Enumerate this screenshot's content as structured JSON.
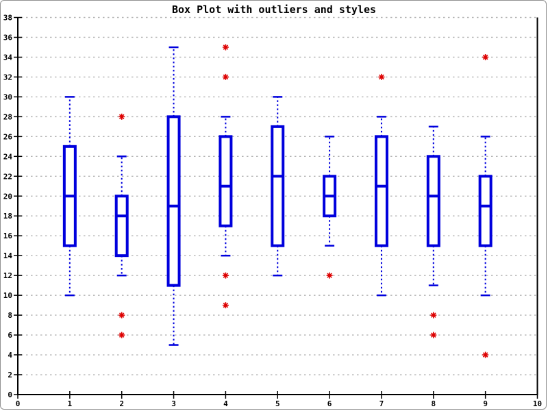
{
  "chart_data": {
    "type": "boxplot",
    "title": "Box Plot with outliers and styles",
    "xlabel": "",
    "ylabel": "",
    "xlim": [
      0,
      10
    ],
    "ylim": [
      0,
      38
    ],
    "x_ticks": [
      0,
      1,
      2,
      3,
      4,
      5,
      6,
      7,
      8,
      9,
      10
    ],
    "y_ticks": [
      0,
      2,
      4,
      6,
      8,
      10,
      12,
      14,
      16,
      18,
      20,
      22,
      24,
      26,
      28,
      30,
      32,
      34,
      36,
      38
    ],
    "grid": {
      "horizontal": true,
      "vertical": false,
      "style": "dashed"
    },
    "legend": "none",
    "boxes": [
      {
        "x": 1,
        "whisker_low": 10,
        "q1": 15,
        "median": 20,
        "q3": 25,
        "whisker_high": 30,
        "outliers": []
      },
      {
        "x": 2,
        "whisker_low": 12,
        "q1": 14,
        "median": 18,
        "q3": 20,
        "whisker_high": 24,
        "outliers": [
          28,
          8,
          6
        ]
      },
      {
        "x": 3,
        "whisker_low": 5,
        "q1": 11,
        "median": 19,
        "q3": 28,
        "whisker_high": 35,
        "outliers": []
      },
      {
        "x": 4,
        "whisker_low": 14,
        "q1": 17,
        "median": 21,
        "q3": 26,
        "whisker_high": 28,
        "outliers": [
          35,
          32,
          12,
          9
        ]
      },
      {
        "x": 5,
        "whisker_low": 12,
        "q1": 15,
        "median": 22,
        "q3": 27,
        "whisker_high": 30,
        "outliers": []
      },
      {
        "x": 6,
        "whisker_low": 15,
        "q1": 18,
        "median": 20,
        "q3": 22,
        "whisker_high": 26,
        "outliers": [
          12
        ]
      },
      {
        "x": 7,
        "whisker_low": 10,
        "q1": 15,
        "median": 21,
        "q3": 26,
        "whisker_high": 28,
        "outliers": [
          32
        ]
      },
      {
        "x": 8,
        "whisker_low": 11,
        "q1": 15,
        "median": 20,
        "q3": 24,
        "whisker_high": 27,
        "outliers": [
          8,
          6
        ]
      },
      {
        "x": 9,
        "whisker_low": 10,
        "q1": 15,
        "median": 19,
        "q3": 22,
        "whisker_high": 26,
        "outliers": [
          34,
          4
        ]
      }
    ],
    "colors": {
      "box": "#0000dd",
      "median": "#0000dd",
      "whisker": "#0000dd",
      "outlier": "#dd0000",
      "grid": "#b3b3b3",
      "axis": "#000000",
      "background": "#ffffff",
      "frame_border": "#909090"
    }
  }
}
